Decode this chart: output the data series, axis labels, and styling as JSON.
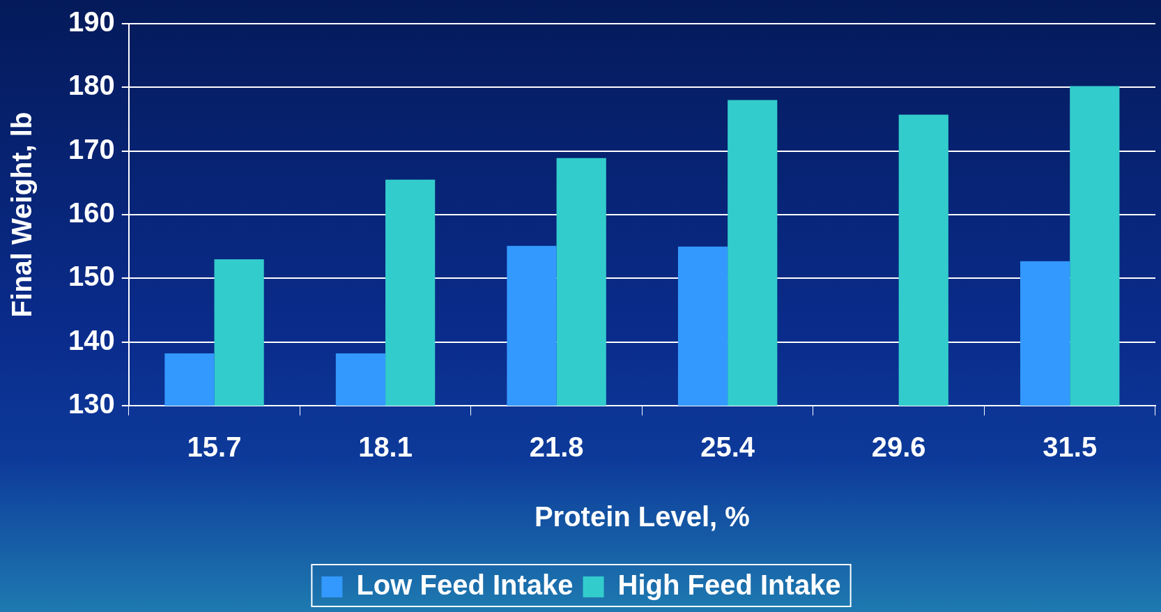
{
  "chart_data": {
    "type": "bar",
    "xlabel": "Protein Level, %",
    "ylabel": "Final Weight, lb",
    "categories": [
      "15.7",
      "18.1",
      "21.8",
      "25.4",
      "29.6",
      "31.5"
    ],
    "series": [
      {
        "name": "Low Feed Intake",
        "color": "#3399ff",
        "values": [
          138.2,
          138.2,
          155.1,
          155,
          null,
          152.7
        ]
      },
      {
        "name": "High Feed Intake",
        "color": "#33cccc",
        "values": [
          153,
          165.5,
          168.9,
          178,
          175.7,
          180.2
        ]
      }
    ],
    "ylim": [
      130,
      190
    ],
    "yticks": [
      130,
      140,
      150,
      160,
      170,
      180,
      190
    ],
    "grid": "y",
    "legend": "bottom"
  }
}
